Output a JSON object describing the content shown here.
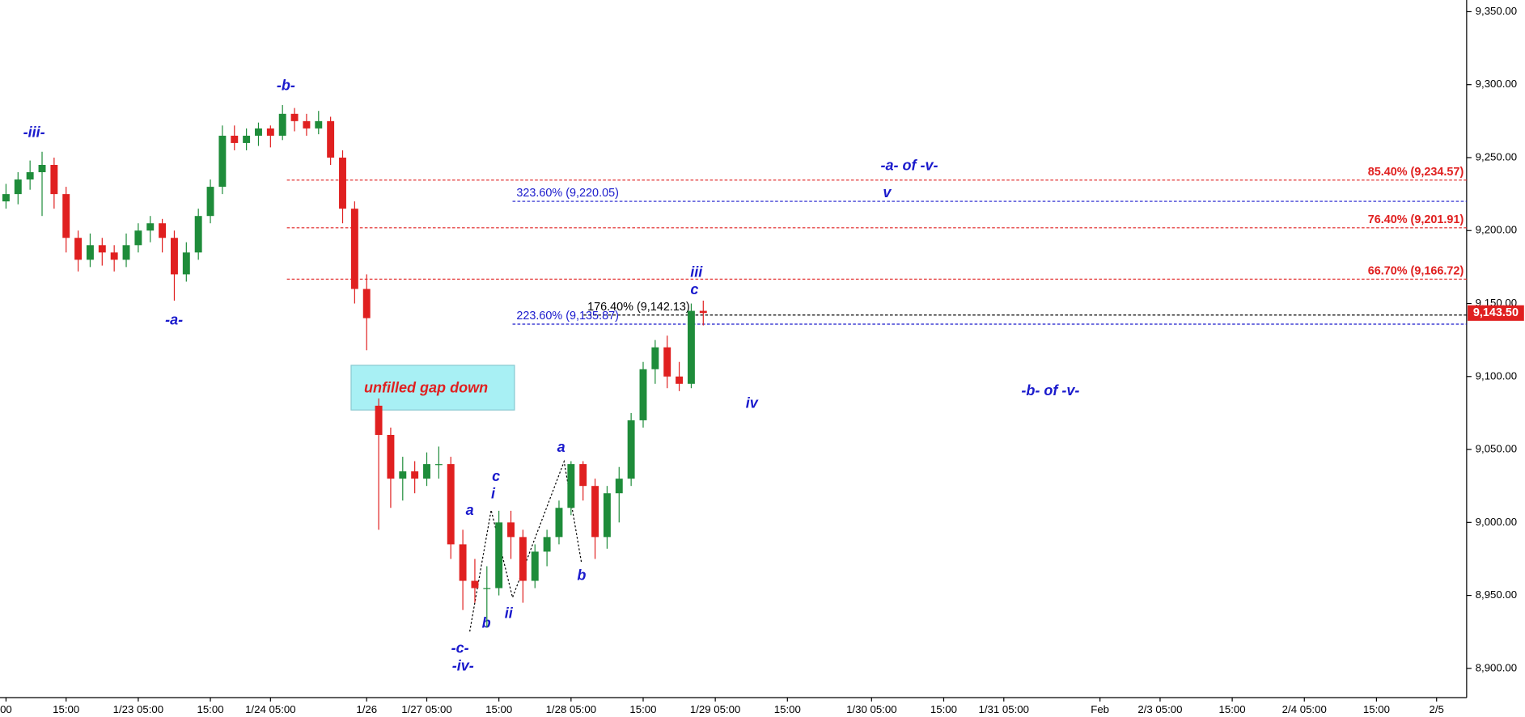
{
  "chart_data": {
    "type": "candlestick",
    "categories": [
      "00",
      null,
      null,
      null,
      null,
      "15:00",
      null,
      null,
      null,
      null,
      null,
      "1/23  05:00",
      null,
      null,
      null,
      null,
      null,
      "15:00",
      null,
      null,
      null,
      null,
      "1/24  05:00",
      null,
      null,
      null,
      null,
      null,
      null,
      null,
      "1/26",
      null,
      null,
      null,
      null,
      "1/27  05:00",
      null,
      null,
      null,
      null,
      null,
      "15:00",
      null,
      null,
      null,
      null,
      null,
      "1/28  05:00",
      null,
      null,
      null,
      null,
      null,
      "15:00",
      null,
      null,
      null,
      null,
      null,
      "1/29  05:00",
      null,
      null,
      null,
      null,
      null,
      "15:00",
      null,
      null,
      null,
      null,
      null,
      null,
      "1/30  05:00",
      null,
      null,
      null,
      null,
      null,
      "15:00",
      null,
      null,
      null,
      null,
      "1/31  05:00",
      null,
      null,
      null,
      null,
      null,
      null,
      null,
      "Feb",
      null,
      null,
      null,
      null,
      "2/3  05:00",
      null,
      null,
      null,
      null,
      null,
      "15:00",
      null,
      null,
      null,
      null,
      null,
      "2/4  05:00",
      null,
      null,
      null,
      null,
      null,
      "15:00",
      null,
      null,
      null,
      null,
      "2/5",
      null,
      null
    ],
    "open": [
      9220,
      9225,
      9235,
      9240,
      9245,
      9225,
      9195,
      9180,
      9190,
      9185,
      9180,
      9190,
      9200,
      9205,
      9195,
      9170,
      9185,
      9210,
      9230,
      9265,
      9260,
      9265,
      9270,
      9265,
      9280,
      9275,
      9270,
      9275,
      9250,
      9215,
      9160,
      9080,
      9060,
      9030,
      9035,
      9030,
      9040,
      9040,
      8985,
      8960,
      8955,
      8955,
      9000,
      8990,
      8960,
      8980,
      8990,
      9010,
      9040,
      9025,
      8990,
      9020,
      9030,
      9070,
      9105,
      9120,
      9100,
      9095,
      9145,
      null,
      null,
      null,
      null,
      null,
      null,
      null,
      null,
      null,
      null,
      null,
      null,
      null,
      null,
      null,
      null,
      null,
      null,
      null,
      null,
      null,
      null,
      null,
      null,
      null,
      null,
      null,
      null,
      null,
      null,
      null,
      null,
      null,
      null,
      null,
      null,
      null,
      null,
      null,
      null,
      null,
      null,
      null,
      null,
      null,
      null,
      null,
      null,
      null,
      null,
      null,
      null,
      null,
      null,
      null,
      null,
      null,
      null,
      null,
      null,
      null,
      null,
      null
    ],
    "high": [
      9232,
      9240,
      9248,
      9254,
      9250,
      9230,
      9200,
      9198,
      9195,
      9190,
      9198,
      9205,
      9210,
      9208,
      9200,
      9192,
      9215,
      9235,
      9272,
      9272,
      9270,
      9274,
      9272,
      9286,
      9284,
      9280,
      9282,
      9278,
      9255,
      9220,
      9170,
      9085,
      9065,
      9045,
      9042,
      9048,
      9052,
      9045,
      8995,
      8975,
      8970,
      9008,
      9008,
      8995,
      8985,
      8995,
      9015,
      9042,
      9042,
      9030,
      9025,
      9038,
      9075,
      9110,
      9125,
      9128,
      9110,
      9150,
      9152,
      null,
      null,
      null,
      null,
      null,
      null,
      null,
      null,
      null,
      null,
      null,
      null,
      null,
      null,
      null,
      null,
      null,
      null,
      null,
      null,
      null,
      null,
      null,
      null,
      null,
      null,
      null,
      null,
      null,
      null,
      null,
      null,
      null,
      null,
      null,
      null,
      null,
      null,
      null,
      null,
      null,
      null,
      null,
      null,
      null,
      null,
      null,
      null,
      null,
      null,
      null,
      null,
      null,
      null,
      null,
      null,
      null,
      null,
      null,
      null,
      null,
      null,
      null
    ],
    "low": [
      9215,
      9218,
      9228,
      9210,
      9215,
      9185,
      9172,
      9175,
      9176,
      9172,
      9175,
      9185,
      9192,
      9185,
      9152,
      9165,
      9180,
      9205,
      9225,
      9255,
      9255,
      9258,
      9257,
      9262,
      9268,
      9265,
      9266,
      9245,
      9205,
      9150,
      9118,
      8995,
      9010,
      9015,
      9020,
      9025,
      9030,
      8975,
      8940,
      8945,
      8928,
      8950,
      8975,
      8945,
      8955,
      8970,
      8985,
      9005,
      9015,
      8975,
      8982,
      9000,
      9025,
      9065,
      9095,
      9092,
      9090,
      9092,
      9135,
      null,
      null,
      null,
      null,
      null,
      null,
      null,
      null,
      null,
      null,
      null,
      null,
      null,
      null,
      null,
      null,
      null,
      null,
      null,
      null,
      null,
      null,
      null,
      null,
      null,
      null,
      null,
      null,
      null,
      null,
      null,
      null,
      null,
      null,
      null,
      null,
      null,
      null,
      null,
      null,
      null,
      null,
      null,
      null,
      null,
      null,
      null,
      null,
      null,
      null,
      null,
      null,
      null,
      null,
      null,
      null,
      null,
      null,
      null,
      null,
      null,
      null,
      null
    ],
    "close": [
      9225,
      9235,
      9240,
      9245,
      9225,
      9195,
      9180,
      9190,
      9185,
      9180,
      9190,
      9200,
      9205,
      9195,
      9170,
      9185,
      9210,
      9230,
      9265,
      9260,
      9265,
      9270,
      9265,
      9280,
      9275,
      9270,
      9275,
      9250,
      9215,
      9160,
      9140,
      9060,
      9030,
      9035,
      9030,
      9040,
      9040,
      8985,
      8960,
      8955,
      8955,
      9000,
      8990,
      8960,
      8980,
      8990,
      9010,
      9040,
      9025,
      8990,
      9020,
      9030,
      9070,
      9105,
      9120,
      9100,
      9095,
      9145,
      9143.5,
      null,
      null,
      null,
      null,
      null,
      null,
      null,
      null,
      null,
      null,
      null,
      null,
      null,
      null,
      null,
      null,
      null,
      null,
      null,
      null,
      null,
      null,
      null,
      null,
      null,
      null,
      null,
      null,
      null,
      null,
      null,
      null,
      null,
      null,
      null,
      null,
      null,
      null,
      null,
      null,
      null,
      null,
      null,
      null,
      null,
      null,
      null,
      null,
      null,
      null,
      null,
      null,
      null,
      null,
      null,
      null,
      null,
      null,
      null,
      null,
      null,
      null,
      null
    ],
    "up_color": "#1e8c3a",
    "down_color": "#e02020",
    "ylim": [
      8880,
      9358
    ],
    "yticks": [
      {
        "value": 8900,
        "label": "8,900.00"
      },
      {
        "value": 8950,
        "label": "8,950.00"
      },
      {
        "value": 9000,
        "label": "9,000.00"
      },
      {
        "value": 9050,
        "label": "9,050.00"
      },
      {
        "value": 9100,
        "label": "9,100.00"
      },
      {
        "value": 9150,
        "label": "9,150.00"
      },
      {
        "value": 9200,
        "label": "9,200.00"
      },
      {
        "value": 9250,
        "label": "9,250.00"
      },
      {
        "value": 9300,
        "label": "9,300.00"
      },
      {
        "value": 9350,
        "label": "9,350.00"
      }
    ],
    "last": {
      "value": 9143.5,
      "label": "9,143.50"
    },
    "levels": [
      {
        "value": 9234.57,
        "label": "85.40% (9,234.57)",
        "color": "#e02020"
      },
      {
        "value": 9220.05,
        "label": "323.60% (9,220.05)",
        "color": "#1a1acc"
      },
      {
        "value": 9201.91,
        "label": "76.40% (9,201.91)",
        "color": "#e02020"
      },
      {
        "value": 9166.72,
        "label": "66.70% (9,166.72)",
        "color": "#e02020"
      },
      {
        "value": 9142.13,
        "label": "176.40% (9,142.13)",
        "color": "#000000"
      },
      {
        "value": 9135.87,
        "label": "223.60% (9,135.87)",
        "color": "#1a1acc"
      }
    ],
    "annotations": [
      "-iii-",
      "-b-",
      "-a-",
      "-a- of -v-",
      "v",
      "iii",
      "c",
      "iv",
      "-b- of -v-",
      "unfilled gap down",
      "a",
      "c",
      "i",
      "b",
      "ii",
      "a",
      "b",
      "-c-",
      "-iv-"
    ]
  }
}
